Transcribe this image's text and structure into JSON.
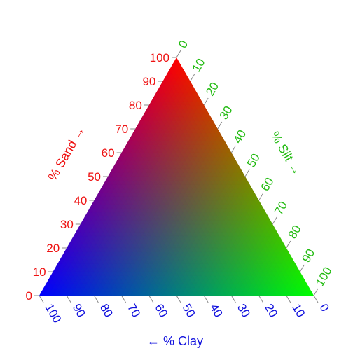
{
  "chart_data": {
    "type": "ternary",
    "description_free": true,
    "axes": {
      "sand": {
        "label": "% Sand →",
        "color": "#ee1111",
        "ticks": [
          0,
          10,
          20,
          30,
          40,
          50,
          60,
          70,
          80,
          90,
          100
        ],
        "tick_labels": [
          "0",
          "10",
          "20",
          "30",
          "40",
          "50",
          "60",
          "70",
          "80",
          "90",
          "100"
        ]
      },
      "silt": {
        "label": "% Silt →",
        "color": "#22bb11",
        "ticks": [
          0,
          10,
          20,
          30,
          40,
          50,
          60,
          70,
          80,
          90,
          100
        ],
        "tick_labels": [
          "0",
          "10",
          "20",
          "30",
          "40",
          "50",
          "60",
          "70",
          "80",
          "90",
          "100"
        ]
      },
      "clay": {
        "label": "← % Clay",
        "color": "#1111dd",
        "ticks": [
          100,
          90,
          80,
          70,
          60,
          50,
          40,
          30,
          20,
          10,
          0
        ],
        "tick_labels": [
          "100",
          "90",
          "80",
          "70",
          "60",
          "50",
          "40",
          "30",
          "20",
          "10",
          "0"
        ]
      }
    },
    "fill": {
      "mode": "rgb-composition",
      "sand_color": "#ff0000",
      "silt_color": "#00ff00",
      "clay_color": "#0000ff",
      "bottom_left_corner": "clay",
      "bottom_right_corner": "silt",
      "top_corner": "sand"
    },
    "range": [
      0,
      100
    ]
  }
}
